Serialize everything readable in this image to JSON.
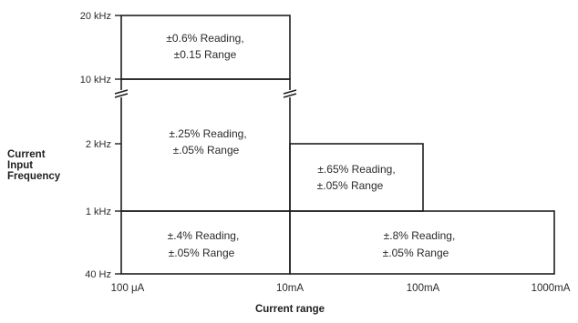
{
  "y_axis": {
    "title_lines": [
      "Current",
      "Input",
      "Frequency"
    ],
    "ticks": [
      "20 kHz",
      "10 kHz",
      "2 kHz",
      "1 kHz",
      "40 Hz"
    ]
  },
  "x_axis": {
    "title": "Current range",
    "ticks": [
      "100 μA",
      "10mA",
      "100mA",
      "1000mA"
    ]
  },
  "regions": [
    {
      "id": "top",
      "line1": "±0.6% Reading,",
      "line2": "±0.15 Range"
    },
    {
      "id": "upper-left",
      "line1": "±.25% Reading,",
      "line2": "±.05% Range"
    },
    {
      "id": "upper-right",
      "line1": "±.65% Reading,",
      "line2": "±.05% Range"
    },
    {
      "id": "bottom-left",
      "line1": "±.4% Reading,",
      "line2": "±.05% Range"
    },
    {
      "id": "bottom-right",
      "line1": "±.8% Reading,",
      "line2": "±.05% Range"
    }
  ]
}
